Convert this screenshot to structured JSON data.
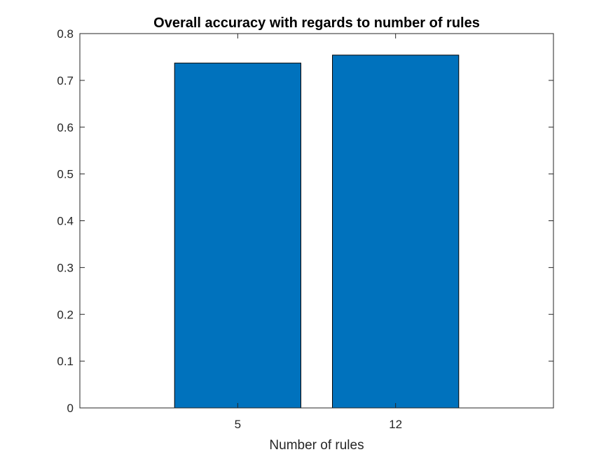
{
  "chart_data": {
    "type": "bar",
    "title": "Overall accuracy with regards to number of rules",
    "xlabel": "Number of rules",
    "ylabel": "",
    "categories": [
      "5",
      "12"
    ],
    "values": [
      0.737,
      0.754
    ],
    "ylim": [
      0,
      0.8
    ],
    "yticks": [
      "0",
      "0.1",
      "0.2",
      "0.3",
      "0.4",
      "0.5",
      "0.6",
      "0.7",
      "0.8"
    ],
    "bar_color": "#0072BD",
    "grid": false,
    "box": true
  }
}
